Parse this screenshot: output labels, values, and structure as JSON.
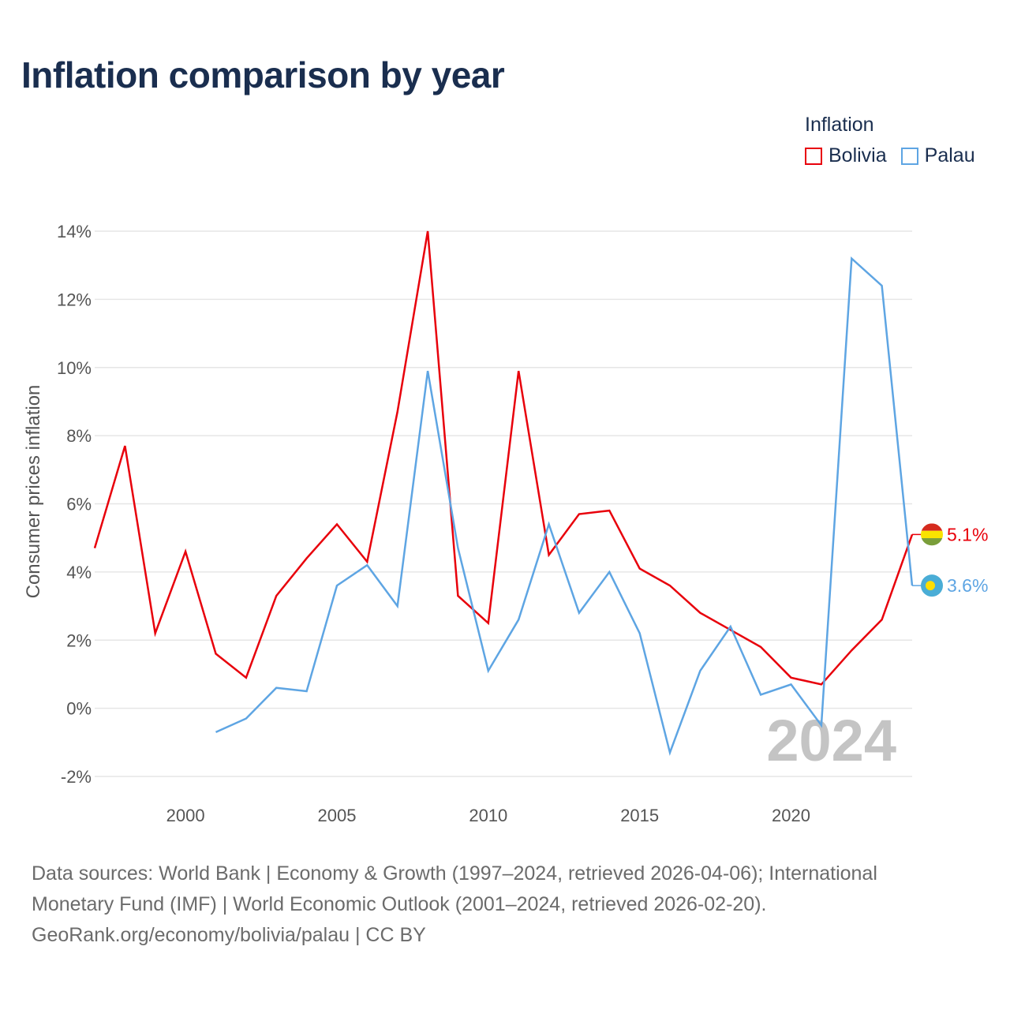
{
  "title": "Inflation comparison by year",
  "legend": {
    "title": "Inflation",
    "items": [
      {
        "label": "Bolivia",
        "color": "#e8000b"
      },
      {
        "label": "Palau",
        "color": "#5ea5e3"
      }
    ]
  },
  "footer": {
    "line1": "Data sources: World Bank | Economy & Growth (1997–2024, retrieved 2026-04-06); International",
    "line2": "Monetary Fund (IMF) | World Economic Outlook (2001–2024, retrieved 2026-02-20).",
    "line3": "GeoRank.org/economy/bolivia/palau | CC BY"
  },
  "chart_data": {
    "type": "line",
    "title": "Inflation comparison by year",
    "xlabel": "",
    "ylabel": "Consumer prices inflation",
    "xlim": [
      1997,
      2024
    ],
    "ylim": [
      -2,
      14
    ],
    "yticks": [
      -2,
      0,
      2,
      4,
      6,
      8,
      10,
      12,
      14
    ],
    "ytick_labels": [
      "-2%",
      "0%",
      "2%",
      "4%",
      "6%",
      "8%",
      "10%",
      "12%",
      "14%"
    ],
    "xticks": [
      2000,
      2005,
      2010,
      2015,
      2020
    ],
    "xtick_labels": [
      "2000",
      "2005",
      "2010",
      "2015",
      "2020"
    ],
    "grid": true,
    "legend_position": "top-right",
    "year_label": "2024",
    "series": [
      {
        "name": "Bolivia",
        "color": "#e8000b",
        "end_label": "5.1%",
        "x": [
          1997,
          1998,
          1999,
          2000,
          2001,
          2002,
          2003,
          2004,
          2005,
          2006,
          2007,
          2008,
          2009,
          2010,
          2011,
          2012,
          2013,
          2014,
          2015,
          2016,
          2017,
          2018,
          2019,
          2020,
          2021,
          2022,
          2023,
          2024
        ],
        "values": [
          4.7,
          7.7,
          2.2,
          4.6,
          1.6,
          0.9,
          3.3,
          4.4,
          5.4,
          4.3,
          8.7,
          14.0,
          3.3,
          2.5,
          9.9,
          4.5,
          5.7,
          5.8,
          4.1,
          3.6,
          2.8,
          2.3,
          1.8,
          0.9,
          0.7,
          1.7,
          2.6,
          5.1
        ]
      },
      {
        "name": "Palau",
        "color": "#5ea5e3",
        "end_label": "3.6%",
        "x": [
          2001,
          2002,
          2003,
          2004,
          2005,
          2006,
          2007,
          2008,
          2009,
          2010,
          2011,
          2012,
          2013,
          2014,
          2015,
          2016,
          2017,
          2018,
          2019,
          2020,
          2021,
          2022,
          2023,
          2024
        ],
        "values": [
          -0.7,
          -0.3,
          0.6,
          0.5,
          3.6,
          4.2,
          3.0,
          9.9,
          4.7,
          1.1,
          2.6,
          5.4,
          2.8,
          4.0,
          2.2,
          -1.3,
          1.1,
          2.4,
          0.4,
          0.7,
          -0.5,
          13.2,
          12.4,
          3.6
        ]
      }
    ]
  }
}
